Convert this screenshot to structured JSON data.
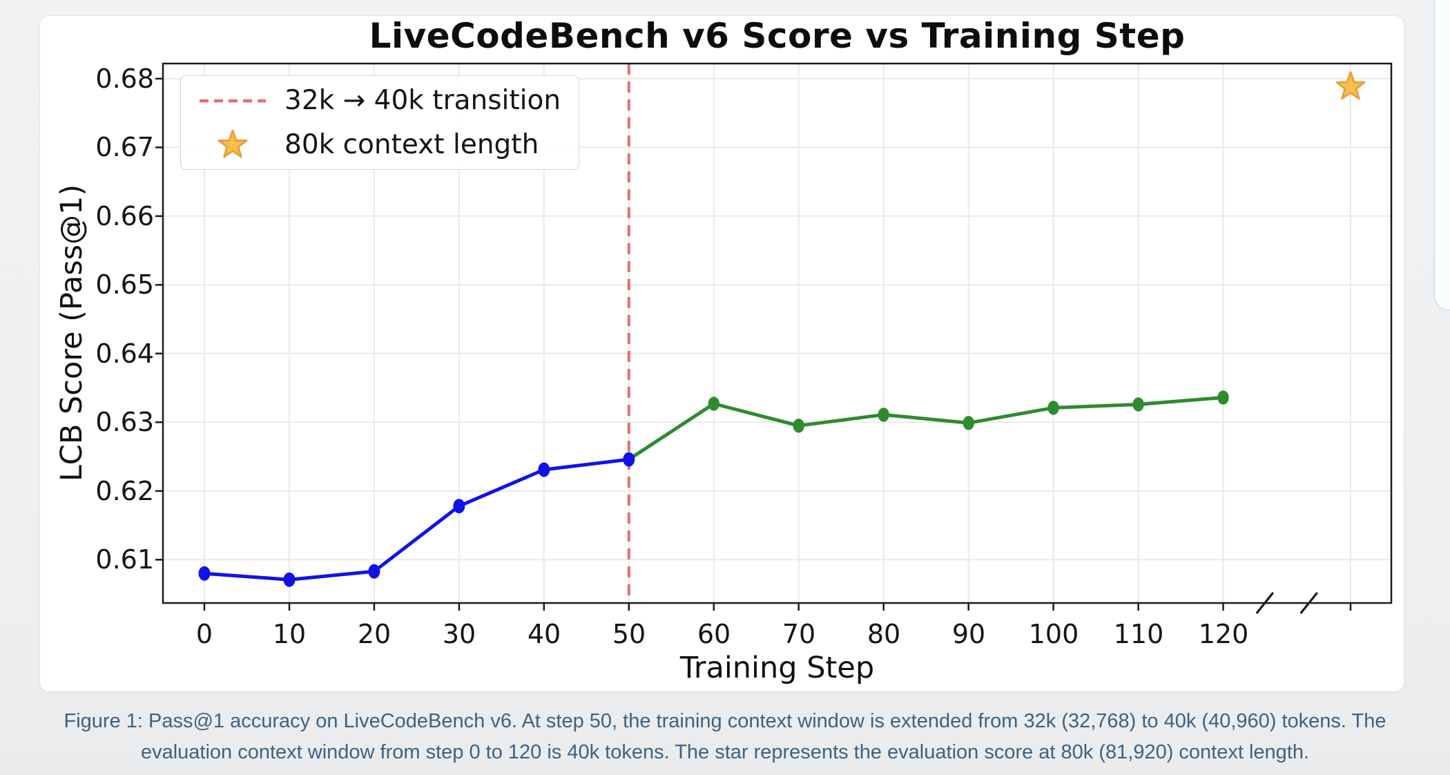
{
  "page": {
    "background": "#eff1f2",
    "caption": {
      "line1": "Figure 1: Pass@1 accuracy on LiveCodeBench v6. At step 50, the training context window is extended from 32k (32,768) to 40k (40,960) tokens. The",
      "line2": "evaluation context window from step 0 to 120 is 40k tokens. The star represents the evaluation score at 80k (81,920) context length.",
      "color": "#3e6280"
    }
  },
  "chart_data": {
    "type": "line",
    "title": "LiveCodeBench v6 Score vs Training Step",
    "xlabel": "Training Step",
    "ylabel": "LCB Score (Pass@1)",
    "xlim": [
      -4.88,
      139.8
    ],
    "ylim": [
      0.6037,
      0.6822
    ],
    "grid": true,
    "x_tick_values": [
      0,
      10,
      20,
      30,
      40,
      50,
      60,
      70,
      80,
      90,
      100,
      110,
      120
    ],
    "x_tick_labels": [
      "0",
      "10",
      "20",
      "30",
      "40",
      "50",
      "60",
      "70",
      "80",
      "90",
      "100",
      "110",
      "120"
    ],
    "y_tick_values": [
      0.61,
      0.62,
      0.63,
      0.64,
      0.65,
      0.66,
      0.67,
      0.68
    ],
    "y_tick_labels": [
      "0.61",
      "0.62",
      "0.63",
      "0.64",
      "0.65",
      "0.66",
      "0.67",
      "0.68"
    ],
    "series": [
      {
        "segment": "blue",
        "color": "#1212e8",
        "x": [
          0,
          10,
          20,
          30,
          40,
          50
        ],
        "y": [
          0.608,
          0.6071,
          0.6083,
          0.6178,
          0.6231,
          0.6246
        ]
      },
      {
        "segment": "green",
        "color": "#2f8b2f",
        "x": [
          50,
          60,
          70,
          80,
          90,
          100,
          110,
          120
        ],
        "y": [
          0.6246,
          0.6327,
          0.6295,
          0.6311,
          0.6299,
          0.6321,
          0.6326,
          0.6336
        ]
      }
    ],
    "star_point": {
      "x": 135,
      "y": 0.6788,
      "fill": "#f6c14a",
      "edge": "#e8a13c"
    },
    "transition_line": {
      "x": 50,
      "color": "#e66e6e",
      "style": "dashed"
    },
    "axis_break_marks_x": [
      124.9,
      130.1
    ],
    "legend": {
      "position": "upper left",
      "entries": [
        {
          "marker": "dashed-line",
          "color": "#e66e6e",
          "label": "32k → 40k transition"
        },
        {
          "marker": "star",
          "color": "#f6c14a",
          "label": "80k context length"
        }
      ]
    },
    "colors": {
      "grid": "#e9e9e9",
      "spine": "#1a1a1a"
    }
  }
}
